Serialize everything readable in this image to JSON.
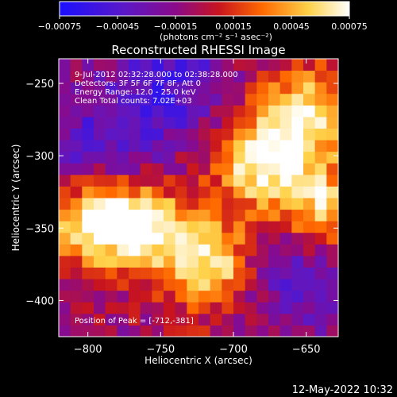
{
  "chart_data": {
    "type": "heatmap",
    "title": "Reconstructed RHESSI Image",
    "xlabel": "Heliocentric X (arcsec)",
    "ylabel": "Heliocentric Y (arcsec)",
    "xlim": [
      -820,
      -628
    ],
    "ylim": [
      -425,
      -233
    ],
    "x_ticks": [
      -800,
      -750,
      -700,
      -650
    ],
    "y_ticks": [
      -250,
      -300,
      -350,
      -400
    ],
    "x_tick_labels": [
      "−800",
      "−750",
      "−700",
      "−650"
    ],
    "y_tick_labels": [
      "−250",
      "−300",
      "−350",
      "−400"
    ],
    "colorbar": {
      "range": [
        -0.00075,
        0.00075
      ],
      "ticks": [
        -0.00075,
        -0.00045,
        -0.00015,
        0.00015,
        0.00045,
        0.00075
      ],
      "tick_labels": [
        "−0.00075",
        "−0.00045",
        "−0.00015",
        "0.00015",
        "0.00045",
        "0.00075"
      ],
      "units": "(photons cm⁻² s⁻¹ asec⁻²)",
      "colors": [
        "#1a10ff",
        "#5a18c8",
        "#8a0a8a",
        "#c8141e",
        "#ff6a00",
        "#ffd24a",
        "#ffffff"
      ]
    },
    "annotations": [
      " 9-Jul-2012 02:32:28.000 to 02:38:28.000",
      "Detectors: 3F 5F 6F 7F 8F, Att 0",
      "Energy Range: 12.0 - 25.0 keV",
      "Clean     Total counts: 7.02E+03"
    ],
    "peak_label": "Position of Peak = [-712,-381]",
    "peak": [
      -712,
      -381
    ],
    "grid": false,
    "field_description": {
      "bright_regions": [
        {
          "x": -797,
          "y": -343,
          "level": 1.0
        },
        {
          "x": -682,
          "y": -305,
          "level": 0.95
        },
        {
          "x": -650,
          "y": -270,
          "level": 0.85
        },
        {
          "x": -715,
          "y": -375,
          "level": 0.9
        },
        {
          "x": -760,
          "y": -350,
          "level": 0.85
        },
        {
          "x": -640,
          "y": -335,
          "level": 0.8
        }
      ],
      "dark_regions": [
        {
          "x": -745,
          "y": -250,
          "level": -0.85
        },
        {
          "x": -795,
          "y": -300,
          "level": -0.75
        },
        {
          "x": -660,
          "y": -380,
          "level": -0.7
        }
      ]
    }
  },
  "timestamp": "12-May-2022 10:32"
}
